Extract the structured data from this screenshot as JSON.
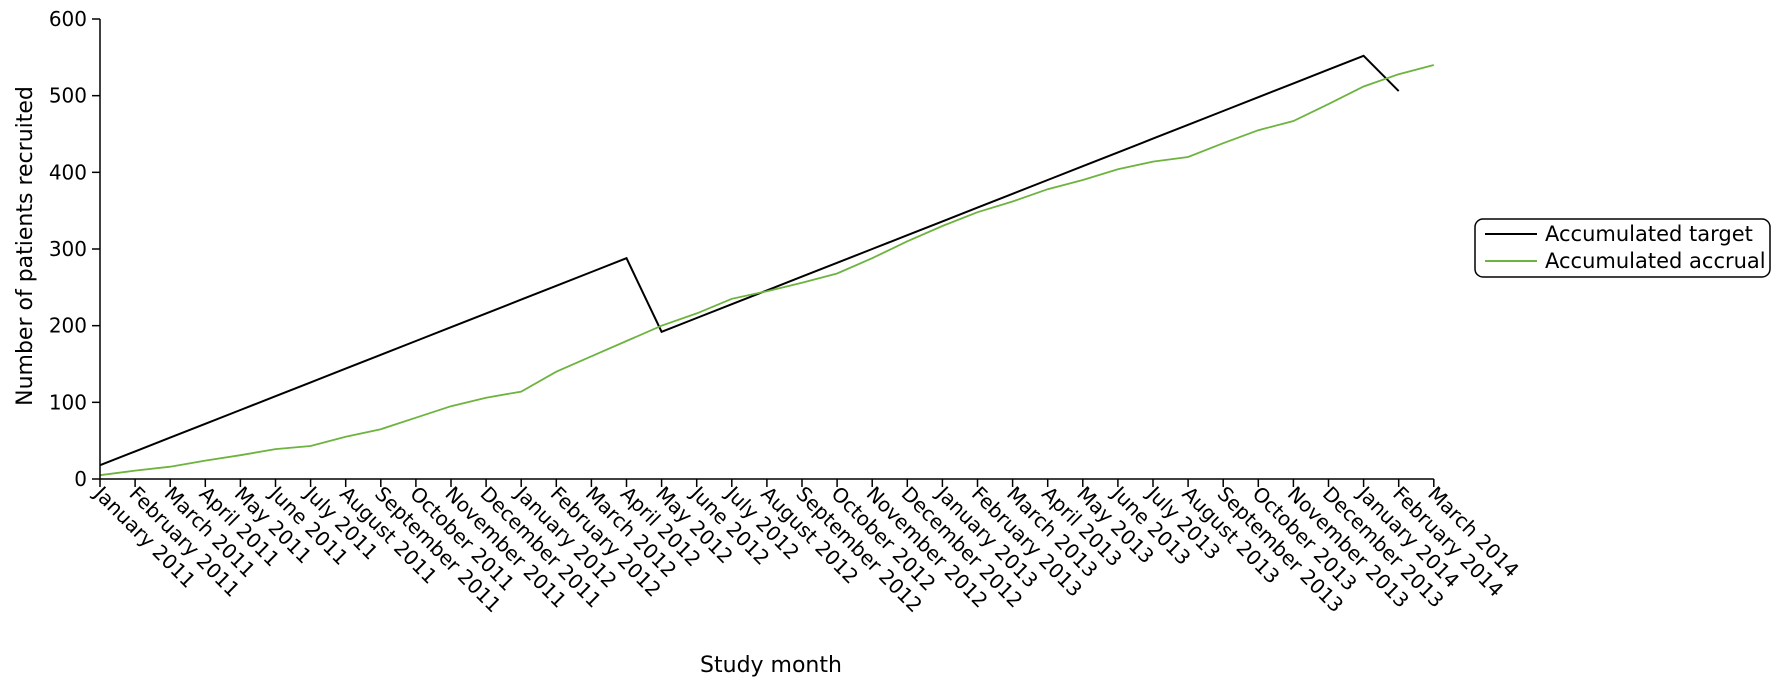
{
  "chart_data": {
    "type": "line",
    "xlabel": "Study month",
    "ylabel": "Number of patients recruited",
    "ylim": [
      0,
      600
    ],
    "yticks": [
      0,
      100,
      200,
      300,
      400,
      500,
      600
    ],
    "categories": [
      "January 2011",
      "February 2011",
      "March 2011",
      "April 2011",
      "May 2011",
      "June 2011",
      "July 2011",
      "August 2011",
      "September 2011",
      "October 2011",
      "November 2011",
      "December 2011",
      "January 2012",
      "February 2012",
      "March 2012",
      "April 2012",
      "May 2012",
      "June 2012",
      "July 2012",
      "August 2012",
      "September 2012",
      "October 2012",
      "November 2012",
      "December 2012",
      "January 2013",
      "February 2013",
      "March 2013",
      "April 2013",
      "May 2013",
      "June 2013",
      "July 2013",
      "August 2013",
      "September 2013",
      "October 2013",
      "November 2013",
      "December 2013",
      "January 2014",
      "February 2014",
      "March 2014"
    ],
    "legend_position": "right",
    "grid": false,
    "series": [
      {
        "name": "Accumulated target",
        "color": "#000000",
        "values": [
          18,
          36,
          54,
          72,
          90,
          108,
          126,
          144,
          162,
          180,
          198,
          216,
          234,
          252,
          270,
          288,
          192,
          210,
          228,
          246,
          264,
          282,
          300,
          318,
          336,
          354,
          372,
          390,
          408,
          426,
          444,
          462,
          480,
          498,
          516,
          534,
          552,
          506,
          null
        ]
      },
      {
        "name": "Accumulated accrual",
        "color": "#6db33f",
        "values": [
          5,
          11,
          16,
          24,
          31,
          39,
          43,
          55,
          65,
          80,
          95,
          106,
          114,
          140,
          160,
          180,
          200,
          216,
          235,
          245,
          256,
          268,
          288,
          310,
          330,
          348,
          362,
          378,
          390,
          404,
          414,
          420,
          438,
          455,
          467,
          489,
          512,
          528,
          540
        ]
      }
    ]
  }
}
